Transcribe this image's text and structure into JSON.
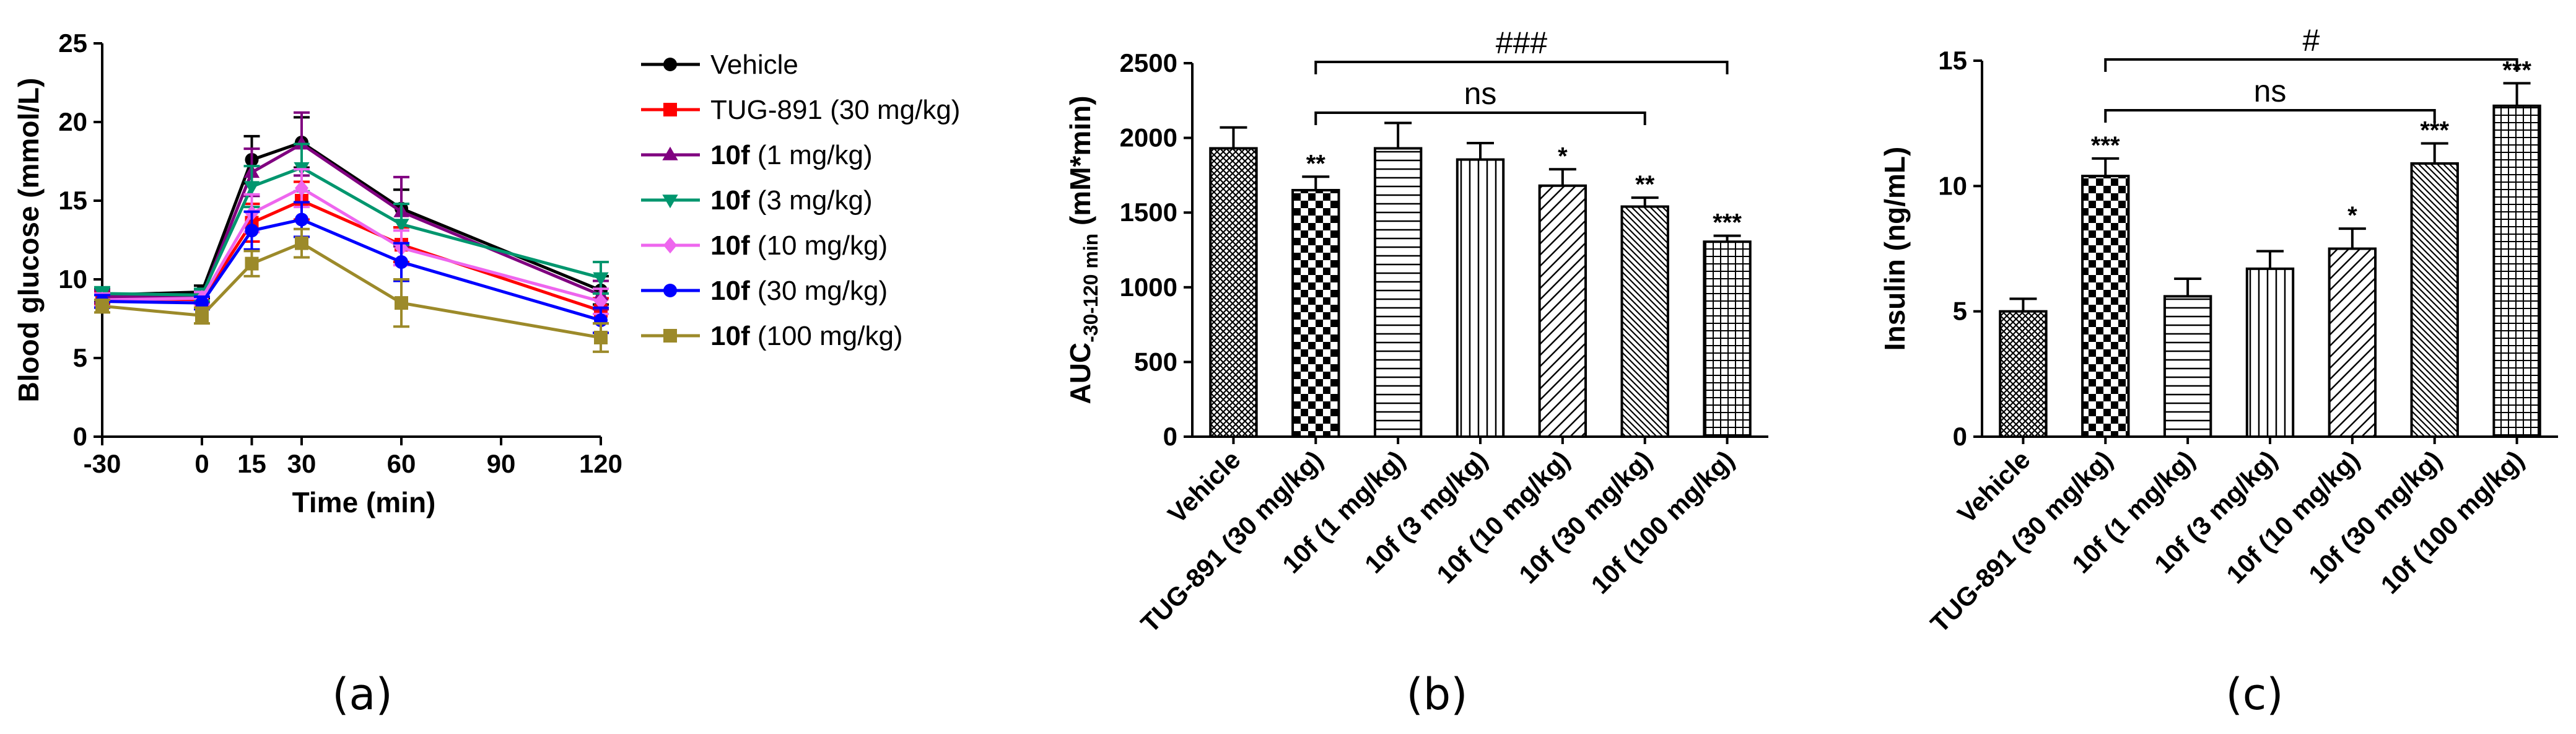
{
  "chart_data": [
    {
      "id": "a",
      "type": "line",
      "panel_label": "(a)",
      "xlabel": "Time (min)",
      "ylabel": "Blood glucose (mmol/L)",
      "xlim": [
        -30,
        120
      ],
      "ylim": [
        0,
        25
      ],
      "xticks": [
        -30,
        0,
        15,
        30,
        60,
        90,
        120
      ],
      "yticks": [
        0,
        5,
        10,
        15,
        20,
        25
      ],
      "x": [
        -30,
        0,
        15,
        30,
        60,
        120
      ],
      "legend_position": "right",
      "series": [
        {
          "name": "Vehicle",
          "bold": "",
          "rest": "Vehicle",
          "color": "#000000",
          "marker": "circle",
          "values": [
            9.0,
            9.2,
            17.6,
            18.7,
            14.5,
            9.3
          ],
          "errors": [
            0.4,
            0.4,
            1.5,
            1.6,
            1.2,
            0.9
          ]
        },
        {
          "name": "TUG-891 (30 mg/kg)",
          "bold": "",
          "rest": "TUG-891 (30 mg/kg)",
          "color": "#ff0000",
          "marker": "square",
          "values": [
            8.8,
            8.7,
            13.6,
            15.0,
            12.2,
            8.0
          ],
          "errors": [
            0.4,
            0.5,
            1.2,
            1.2,
            1.1,
            0.8
          ]
        },
        {
          "name": "10f (1 mg/kg)",
          "bold": "10f",
          "rest": " (1 mg/kg)",
          "color": "#800080",
          "marker": "triangle-up",
          "values": [
            8.9,
            8.9,
            16.8,
            18.6,
            14.3,
            9.0
          ],
          "errors": [
            0.4,
            0.4,
            1.5,
            2.0,
            2.2,
            0.9
          ]
        },
        {
          "name": "10f (3 mg/kg)",
          "bold": "10f",
          "rest": " (3 mg/kg)",
          "color": "#00966e",
          "marker": "triangle-down",
          "values": [
            9.1,
            9.0,
            15.9,
            17.1,
            13.5,
            10.1
          ],
          "errors": [
            0.4,
            0.4,
            1.3,
            1.5,
            1.3,
            1.0
          ]
        },
        {
          "name": "10f (10 mg/kg)",
          "bold": "10f",
          "rest": " (10 mg/kg)",
          "color": "#ee66ee",
          "marker": "diamond",
          "values": [
            8.7,
            8.8,
            14.2,
            15.8,
            12.0,
            8.6
          ],
          "errors": [
            0.4,
            0.4,
            1.2,
            1.2,
            1.1,
            0.8
          ]
        },
        {
          "name": "10f (30 mg/kg)",
          "bold": "10f",
          "rest": " (30 mg/kg)",
          "color": "#0000ff",
          "marker": "circle",
          "values": [
            8.6,
            8.5,
            13.1,
            13.8,
            11.1,
            7.4
          ],
          "errors": [
            0.4,
            0.4,
            1.2,
            1.1,
            1.2,
            0.8
          ]
        },
        {
          "name": "10f (100 mg/kg)",
          "bold": "10f",
          "rest": " (100 mg/kg)",
          "color": "#9c8a2a",
          "marker": "square",
          "values": [
            8.3,
            7.7,
            11.0,
            12.3,
            8.5,
            6.3
          ],
          "errors": [
            0.4,
            0.5,
            0.8,
            0.9,
            1.5,
            0.9
          ]
        }
      ]
    },
    {
      "id": "b",
      "type": "bar",
      "panel_label": "(b)",
      "ylabel_main": "AUC",
      "ylabel_sub": "-30-120 min",
      "ylabel_unit": " (mM*min)",
      "ylim": [
        0,
        2500
      ],
      "yticks": [
        0,
        500,
        1000,
        1500,
        2000,
        2500
      ],
      "categories": [
        "Vehicle",
        "TUG-891 (30 mg/kg)",
        "10f (1 mg/kg)",
        "10f (3 mg/kg)",
        "10f (10 mg/kg)",
        "10f (30 mg/kg)",
        "10f (100 mg/kg)"
      ],
      "values": [
        1930,
        1650,
        1930,
        1855,
        1680,
        1540,
        1305
      ],
      "errors": [
        140,
        90,
        170,
        110,
        110,
        60,
        40
      ],
      "patterns": [
        "crosshatch",
        "checker",
        "hlines",
        "vlines",
        "diag",
        "diag-dense",
        "grid"
      ],
      "significance": [
        "",
        "**",
        "",
        "",
        "*",
        "**",
        "***"
      ],
      "brackets": [
        {
          "from": 1,
          "to": 6,
          "label": "###",
          "level": 0
        },
        {
          "from": 1,
          "to": 5,
          "label": "ns",
          "level": 1
        }
      ]
    },
    {
      "id": "c",
      "type": "bar",
      "panel_label": "(c)",
      "ylabel": "Insulin (ng/mL)",
      "ylim": [
        0,
        15
      ],
      "yticks": [
        0,
        5,
        10,
        15
      ],
      "categories": [
        "Vehicle",
        "TUG-891 (30 mg/kg)",
        "10f (1 mg/kg)",
        "10f (3 mg/kg)",
        "10f (10 mg/kg)",
        "10f (30 mg/kg)",
        "10f (100 mg/kg)"
      ],
      "values": [
        5.0,
        10.4,
        5.6,
        6.7,
        7.5,
        10.9,
        13.2
      ],
      "errors": [
        0.5,
        0.7,
        0.7,
        0.7,
        0.8,
        0.8,
        0.9
      ],
      "patterns": [
        "crosshatch",
        "checker",
        "hlines",
        "vlines",
        "diag",
        "diag-dense",
        "grid"
      ],
      "significance": [
        "",
        "***",
        "",
        "",
        "*",
        "***",
        "***"
      ],
      "brackets": [
        {
          "from": 1,
          "to": 6,
          "label": "#",
          "level": 0
        },
        {
          "from": 1,
          "to": 5,
          "label": "ns",
          "level": 1
        }
      ]
    }
  ]
}
